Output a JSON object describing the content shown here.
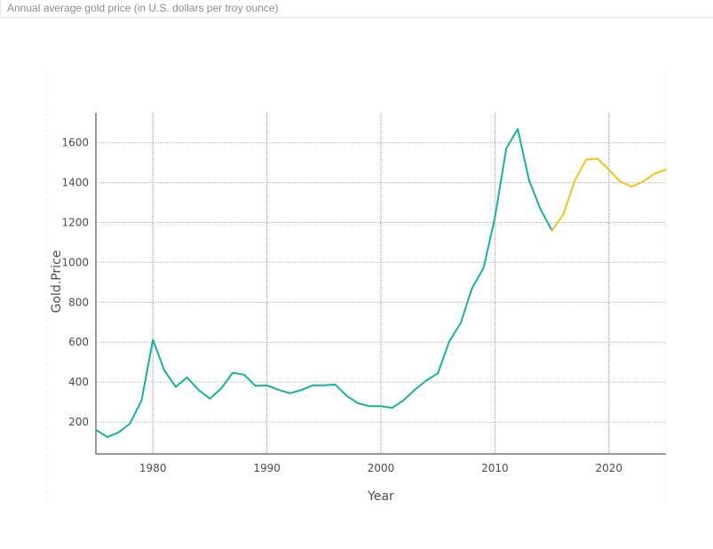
{
  "header": {
    "title": "Annual average gold price (in U.S. dollars per troy ounce)"
  },
  "chart_data": {
    "type": "line",
    "xlabel": "Year",
    "ylabel": "Gold.Price",
    "xlim": [
      1975,
      2025
    ],
    "ylim": [
      40,
      1750
    ],
    "x_ticks": [
      1980,
      1990,
      2000,
      2010,
      2020
    ],
    "y_ticks": [
      200,
      400,
      600,
      800,
      1000,
      1200,
      1400,
      1600
    ],
    "grid": true,
    "series": [
      {
        "color": "#14b2a0",
        "x": [
          1975,
          1976,
          1977,
          1978,
          1979,
          1980,
          1981,
          1982,
          1983,
          1984,
          1985,
          1986,
          1987,
          1988,
          1989,
          1990,
          1991,
          1992,
          1993,
          1994,
          1995,
          1996,
          1997,
          1998,
          1999,
          2000,
          2001,
          2002,
          2003,
          2004,
          2005,
          2006,
          2007,
          2008,
          2009,
          2010,
          2011,
          2012,
          2013,
          2014,
          2015
        ],
        "y": [
          161,
          125,
          148,
          193,
          307,
          612,
          460,
          376,
          424,
          361,
          317,
          368,
          447,
          437,
          381,
          384,
          362,
          344,
          360,
          384,
          384,
          388,
          331,
          294,
          279,
          279,
          271,
          310,
          363,
          409,
          445,
          604,
          697,
          872,
          972,
          1225,
          1572,
          1669,
          1411,
          1266,
          1160
        ]
      },
      {
        "color": "#f0c419",
        "x": [
          2015,
          2016,
          2017,
          2018,
          2019,
          2020,
          2021,
          2022,
          2023,
          2024,
          2025
        ],
        "y": [
          1160,
          1240,
          1410,
          1515,
          1520,
          1465,
          1405,
          1380,
          1405,
          1445,
          1465
        ]
      }
    ]
  }
}
